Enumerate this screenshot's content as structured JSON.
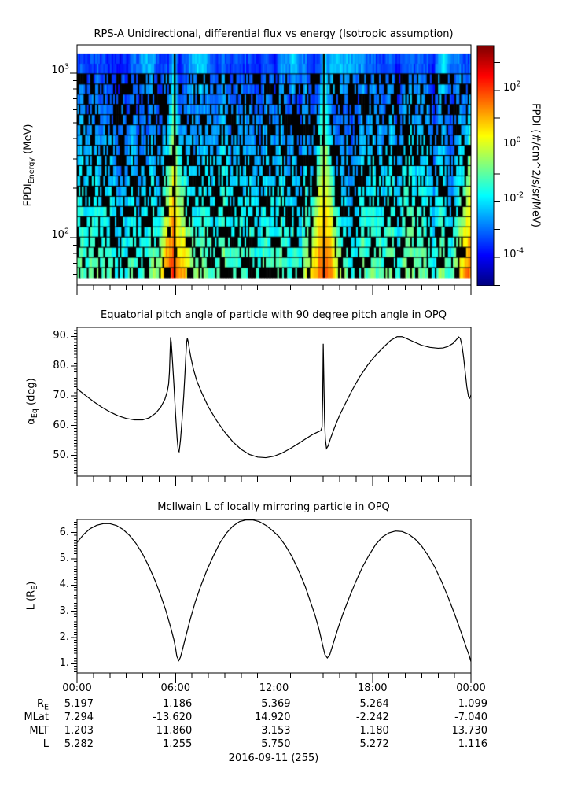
{
  "page": {
    "background": "#ffffff",
    "foreground": "#000000"
  },
  "panels": {
    "spectrogram": {
      "title": "RPS-A Unidirectional, differential flux vs energy (Isotropic assumption)",
      "ylabel": {
        "prefix": "FPDI",
        "sub": "Energy",
        "suffix": " (MeV)"
      },
      "yticks": [
        {
          "v": 1000,
          "base": "10",
          "exp": "3"
        },
        {
          "v": 100,
          "base": "10",
          "exp": "2"
        }
      ]
    },
    "colorbar": {
      "label": "FPDI (#/cm^2/s/sr/MeV)",
      "ticks": [
        {
          "decade": 2,
          "base": "10",
          "exp": "2"
        },
        {
          "decade": 0,
          "base": "10",
          "exp": "0"
        },
        {
          "decade": -2,
          "base": "10",
          "exp": "-2"
        },
        {
          "decade": -4,
          "base": "10",
          "exp": "-4"
        }
      ]
    },
    "pitch": {
      "title": "Equatorial pitch angle of particle with 90 degree pitch angle in OPQ",
      "ylabel": {
        "prefix": "α",
        "sub": "Eq",
        "suffix": " (deg)"
      },
      "yticks": [
        {
          "v": 90,
          "label": "90."
        },
        {
          "v": 80,
          "label": "80."
        },
        {
          "v": 70,
          "label": "70."
        },
        {
          "v": 60,
          "label": "60."
        },
        {
          "v": 50,
          "label": "50."
        }
      ]
    },
    "mcilwain": {
      "title": "McIlwain L of locally mirroring particle in OPQ",
      "ylabel": {
        "prefix": "L (R",
        "sub": "E",
        "suffix": ")"
      },
      "yticks": [
        {
          "v": 6,
          "label": "6."
        },
        {
          "v": 5,
          "label": "5."
        },
        {
          "v": 4,
          "label": "4."
        },
        {
          "v": 3,
          "label": "3."
        },
        {
          "v": 2,
          "label": "2."
        },
        {
          "v": 1,
          "label": "1."
        }
      ]
    }
  },
  "xaxis": {
    "ticks": [
      {
        "h": 0,
        "label": "00:00"
      },
      {
        "h": 6,
        "label": "06:00"
      },
      {
        "h": 12,
        "label": "12:00"
      },
      {
        "h": 18,
        "label": "18:00"
      },
      {
        "h": 24,
        "label": "00:00"
      }
    ],
    "date": "2016-09-11 (255)"
  },
  "table": {
    "rows": [
      {
        "label": "R",
        "sub": "E",
        "values": [
          "5.197",
          "1.186",
          "5.369",
          "5.264",
          "1.099"
        ]
      },
      {
        "label": "MLat",
        "sub": "",
        "values": [
          "7.294",
          "-13.620",
          "14.920",
          "-2.242",
          "-7.040"
        ]
      },
      {
        "label": "MLT",
        "sub": "",
        "values": [
          "1.203",
          "11.860",
          "3.153",
          "1.180",
          "13.730"
        ]
      },
      {
        "label": "L",
        "sub": "",
        "values": [
          "5.282",
          "1.255",
          "5.750",
          "5.272",
          "1.116"
        ]
      }
    ]
  },
  "chart_data": [
    {
      "type": "heatmap",
      "name": "rps_a_differential_flux_spectrogram",
      "title": "RPS-A Unidirectional, differential flux vs energy (Isotropic assumption)",
      "x_hours_range": [
        0,
        24
      ],
      "energy_mev_range": [
        52,
        1490
      ],
      "energy_axis_major_ticks_mev": [
        100,
        1000
      ],
      "colorbar_log10_flux_range": [
        -5.0,
        3.6
      ],
      "colorbar_labeled_decades": [
        2,
        0,
        -2,
        -4
      ],
      "colormap": "jet",
      "flux_units": "#/cm^2/s/sr/MeV",
      "features": {
        "perigee_plume_hours": [
          5.95,
          15.04,
          24.15
        ],
        "data_gap_line_hours": [
          5.95,
          15.04
        ],
        "top_band_glow_hours": [
          4.2,
          7.4,
          13.2,
          15.7,
          16.8,
          22.5
        ],
        "base_log10_flux_top_rows": -3.45,
        "base_log10_flux_bottom_rows": -1.2,
        "plume_peak_log10_flux_bottom": 1.8,
        "description": "Blue low-flux band at highest energies; noisy cyan/green background with black dropout gaps at mid/low energies; yellow-orange funnel-shaped flux plumes at perigee passes near 06:00, 15:00 and 24:00, each widening toward low energy, with a narrow black data-gap line at plume center."
      },
      "render": {
        "n_rows": 22,
        "n_cols": 240,
        "dropout_prob_mid": 0.5,
        "dropout_prob_low": 0.38,
        "dropout_prob_high": 0.42,
        "seed": 42
      }
    },
    {
      "type": "line",
      "name": "equatorial_pitch_angle_deg",
      "title": "Equatorial pitch angle of particle with 90 degree pitch angle in OPQ",
      "ylim": [
        43,
        93
      ],
      "yticks": [
        50,
        60,
        70,
        80,
        90
      ],
      "x_hours": [
        0,
        0.5,
        1,
        1.5,
        2,
        2.5,
        3,
        3.5,
        4,
        4.4,
        4.8,
        5.1,
        5.35,
        5.5,
        5.58,
        5.63,
        5.66,
        5.7,
        5.74,
        5.8,
        5.9,
        6.0,
        6.1,
        6.17,
        6.22,
        6.3,
        6.4,
        6.5,
        6.57,
        6.63,
        6.68,
        6.72,
        6.78,
        6.85,
        6.95,
        7.1,
        7.3,
        7.6,
        8,
        8.5,
        9,
        9.5,
        10,
        10.5,
        11,
        11.5,
        12,
        12.5,
        13,
        13.5,
        14,
        14.35,
        14.65,
        14.85,
        14.93,
        14.97,
        15.0,
        15.04,
        15.08,
        15.13,
        15.2,
        15.3,
        15.45,
        15.7,
        16,
        16.4,
        16.8,
        17.2,
        17.7,
        18.2,
        18.7,
        19.1,
        19.5,
        19.8,
        20.1,
        20.5,
        21,
        21.5,
        22,
        22.3,
        22.6,
        22.9,
        23.1,
        23.25,
        23.35,
        23.45,
        23.55,
        23.65,
        23.75,
        23.85,
        23.92,
        24
      ],
      "y_deg": [
        72.4,
        70.2,
        68.1,
        66.2,
        64.6,
        63.3,
        62.4,
        61.9,
        61.9,
        62.6,
        64.2,
        66.2,
        68.8,
        71.5,
        74,
        78,
        83,
        89.7,
        88,
        83,
        74,
        64,
        55.5,
        51.5,
        51.2,
        55,
        62,
        70,
        77,
        83.5,
        88,
        89.4,
        88,
        85.5,
        82.5,
        78.8,
        75,
        71,
        66.3,
        61.7,
        57.8,
        54.5,
        52,
        50.3,
        49.4,
        49.2,
        49.7,
        50.8,
        52.3,
        54,
        55.8,
        57,
        57.8,
        58.3,
        59.5,
        70,
        87.5,
        75,
        62,
        55.5,
        52.3,
        53.2,
        55.8,
        59.5,
        63.5,
        68,
        72.3,
        76.2,
        80.3,
        83.7,
        86.5,
        88.6,
        89.9,
        89.9,
        89.2,
        88.2,
        87,
        86.3,
        86,
        86.1,
        86.6,
        87.6,
        88.8,
        89.8,
        89.3,
        87,
        83,
        78,
        73,
        69.8,
        69.2,
        70.3
      ]
    },
    {
      "type": "line",
      "name": "mcilwain_L_RE",
      "title": "McIlwain L of locally mirroring particle in OPQ",
      "ylim": [
        0.65,
        6.5
      ],
      "yticks": [
        1,
        2,
        3,
        4,
        5,
        6
      ],
      "x_hours": [
        0,
        0.4,
        0.8,
        1.2,
        1.6,
        2,
        2.4,
        2.8,
        3.2,
        3.6,
        4,
        4.4,
        4.8,
        5.1,
        5.4,
        5.7,
        5.9,
        6.0,
        6.08,
        6.2,
        6.3,
        6.45,
        6.65,
        6.9,
        7.2,
        7.5,
        7.9,
        8.3,
        8.7,
        9.1,
        9.5,
        9.9,
        10.3,
        10.7,
        11.1,
        11.5,
        11.9,
        12.3,
        12.7,
        13.1,
        13.5,
        13.9,
        14.2,
        14.5,
        14.75,
        14.95,
        15.1,
        15.25,
        15.4,
        15.6,
        15.9,
        16.2,
        16.6,
        17,
        17.4,
        17.8,
        18.2,
        18.6,
        19,
        19.4,
        19.8,
        20.2,
        20.6,
        21,
        21.4,
        21.8,
        22.2,
        22.6,
        23,
        23.4,
        23.7,
        23.9,
        24
      ],
      "y": [
        5.62,
        5.93,
        6.15,
        6.28,
        6.34,
        6.34,
        6.27,
        6.12,
        5.89,
        5.58,
        5.18,
        4.68,
        4.1,
        3.6,
        3.05,
        2.4,
        1.92,
        1.6,
        1.28,
        1.12,
        1.25,
        1.6,
        2.1,
        2.7,
        3.35,
        3.9,
        4.55,
        5.1,
        5.6,
        5.98,
        6.25,
        6.42,
        6.5,
        6.5,
        6.42,
        6.28,
        6.08,
        5.85,
        5.5,
        5.08,
        4.55,
        3.95,
        3.4,
        2.85,
        2.3,
        1.75,
        1.35,
        1.22,
        1.35,
        1.75,
        2.35,
        2.9,
        3.55,
        4.15,
        4.7,
        5.15,
        5.55,
        5.83,
        5.99,
        6.06,
        6.04,
        5.94,
        5.75,
        5.48,
        5.12,
        4.68,
        4.15,
        3.55,
        2.9,
        2.2,
        1.65,
        1.3,
        1.08
      ]
    }
  ]
}
